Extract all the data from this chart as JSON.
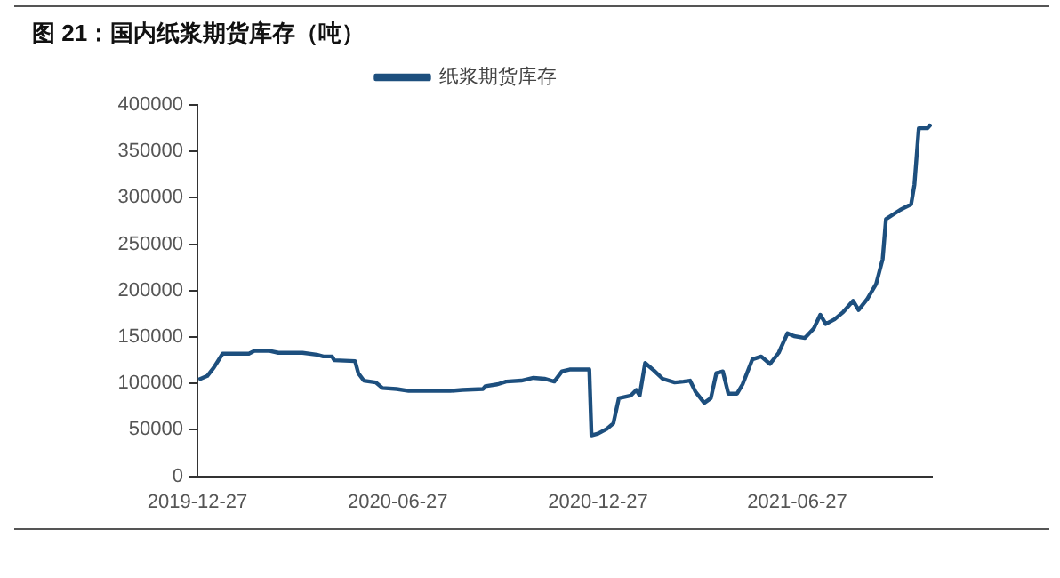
{
  "chart_data": {
    "type": "line",
    "title": "图 21：国内纸浆期货库存（吨）",
    "x": [
      "2019-12-28",
      "2020-01-05",
      "2020-01-11",
      "2020-01-19",
      "2020-02-12",
      "2020-02-17",
      "2020-03-02",
      "2020-03-10",
      "2020-04-01",
      "2020-04-14",
      "2020-04-20",
      "2020-04-28",
      "2020-04-30",
      "2020-05-19",
      "2020-05-22",
      "2020-05-27",
      "2020-06-07",
      "2020-06-13",
      "2020-06-26",
      "2020-07-07",
      "2020-08-14",
      "2020-08-25",
      "2020-09-13",
      "2020-09-15",
      "2020-09-26",
      "2020-10-04",
      "2020-10-18",
      "2020-10-29",
      "2020-11-08",
      "2020-11-17",
      "2020-11-24",
      "2020-12-01",
      "2020-12-19",
      "2020-12-21",
      "2020-12-27",
      "2021-01-04",
      "2021-01-10",
      "2021-01-15",
      "2021-01-26",
      "2021-01-31",
      "2021-02-03",
      "2021-02-08",
      "2021-02-16",
      "2021-02-24",
      "2021-03-07",
      "2021-03-15",
      "2021-03-21",
      "2021-03-26",
      "2021-04-03",
      "2021-04-09",
      "2021-04-14",
      "2021-04-20",
      "2021-04-25",
      "2021-05-03",
      "2021-05-08",
      "2021-05-17",
      "2021-05-25",
      "2021-06-02",
      "2021-06-10",
      "2021-06-18",
      "2021-06-24",
      "2021-07-04",
      "2021-07-12",
      "2021-07-18",
      "2021-07-23",
      "2021-07-31",
      "2021-08-08",
      "2021-08-17",
      "2021-08-22",
      "2021-08-30",
      "2021-09-07",
      "2021-09-13",
      "2021-09-16",
      "2021-09-29",
      "2021-10-09",
      "2021-10-12",
      "2021-10-16",
      "2021-10-24",
      "2021-10-27"
    ],
    "series": [
      {
        "name": "纸浆期货库存",
        "color": "#1d4f7e",
        "values": [
          104000,
          108000,
          117000,
          132000,
          132000,
          135000,
          135000,
          133000,
          133000,
          131000,
          129000,
          129000,
          125000,
          124000,
          111000,
          103000,
          101000,
          95000,
          94000,
          92000,
          92000,
          93000,
          94000,
          97000,
          99000,
          102000,
          103000,
          106000,
          105000,
          102000,
          113000,
          115000,
          115000,
          44000,
          46000,
          51000,
          57000,
          84000,
          87000,
          93000,
          87000,
          122000,
          114000,
          105000,
          101000,
          102000,
          103000,
          91000,
          79000,
          84000,
          111000,
          113000,
          89000,
          89000,
          99000,
          126000,
          129000,
          121000,
          133000,
          154000,
          151000,
          149000,
          159000,
          174000,
          164000,
          169000,
          177000,
          189000,
          179000,
          191000,
          207000,
          234000,
          277000,
          287000,
          293000,
          314000,
          375000,
          375000,
          379000
        ]
      }
    ],
    "xlim": [
      "2019-12-27",
      "2021-10-28"
    ],
    "xticks": [
      "2019-12-27",
      "2020-06-27",
      "2020-12-27",
      "2021-06-27"
    ],
    "ylim": [
      0,
      400000
    ],
    "yticks": [
      0,
      50000,
      100000,
      150000,
      200000,
      250000,
      300000,
      350000,
      400000
    ],
    "grid": false,
    "legend": "top",
    "marker": "none",
    "line_style": "solid"
  }
}
